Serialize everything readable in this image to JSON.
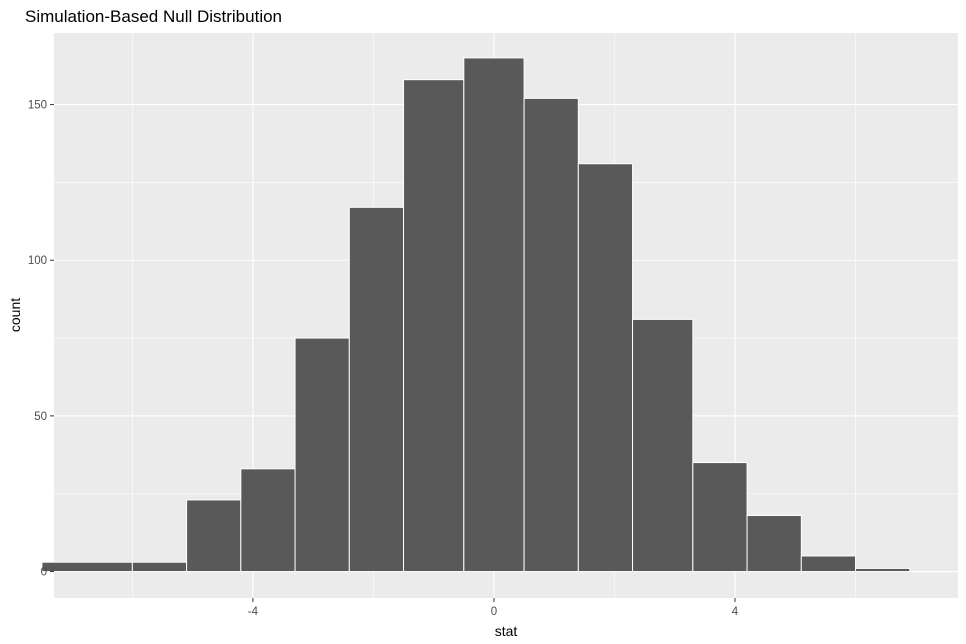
{
  "chart_data": {
    "type": "histogram",
    "title": "Simulation-Based Null Distribution",
    "xlabel": "stat",
    "ylabel": "count",
    "bins": [
      {
        "x0": -7.5,
        "x1": -6.0,
        "count": 3
      },
      {
        "x0": -6.0,
        "x1": -5.1,
        "count": 3
      },
      {
        "x0": -5.1,
        "x1": -4.2,
        "count": 23
      },
      {
        "x0": -4.2,
        "x1": -3.3,
        "count": 33
      },
      {
        "x0": -3.3,
        "x1": -2.4,
        "count": 75
      },
      {
        "x0": -2.4,
        "x1": -1.5,
        "count": 117
      },
      {
        "x0": -1.5,
        "x1": -0.5,
        "count": 158
      },
      {
        "x0": -0.5,
        "x1": 0.5,
        "count": 165
      },
      {
        "x0": 0.5,
        "x1": 1.4,
        "count": 152
      },
      {
        "x0": 1.4,
        "x1": 2.3,
        "count": 131
      },
      {
        "x0": 2.3,
        "x1": 3.3,
        "count": 81
      },
      {
        "x0": 3.3,
        "x1": 4.2,
        "count": 35
      },
      {
        "x0": 4.2,
        "x1": 5.1,
        "count": 18
      },
      {
        "x0": 5.1,
        "x1": 6.0,
        "count": 5
      },
      {
        "x0": 6.0,
        "x1": 6.9,
        "count": 1
      }
    ],
    "xlim": [
      -7.3,
      7.7
    ],
    "ylim": [
      -8.5,
      173
    ],
    "x_ticks": [
      -4,
      0,
      4
    ],
    "x_tick_labels": [
      "-4",
      "0",
      "4"
    ],
    "y_ticks": [
      0,
      50,
      100,
      150
    ],
    "y_tick_labels": [
      "0",
      "50",
      "100",
      "150"
    ],
    "grid": true,
    "colors": {
      "panel_background": "#ebebeb",
      "grid_major": "#ffffff",
      "bar_fill": "#595959",
      "bar_outline": "#ffffff"
    }
  }
}
